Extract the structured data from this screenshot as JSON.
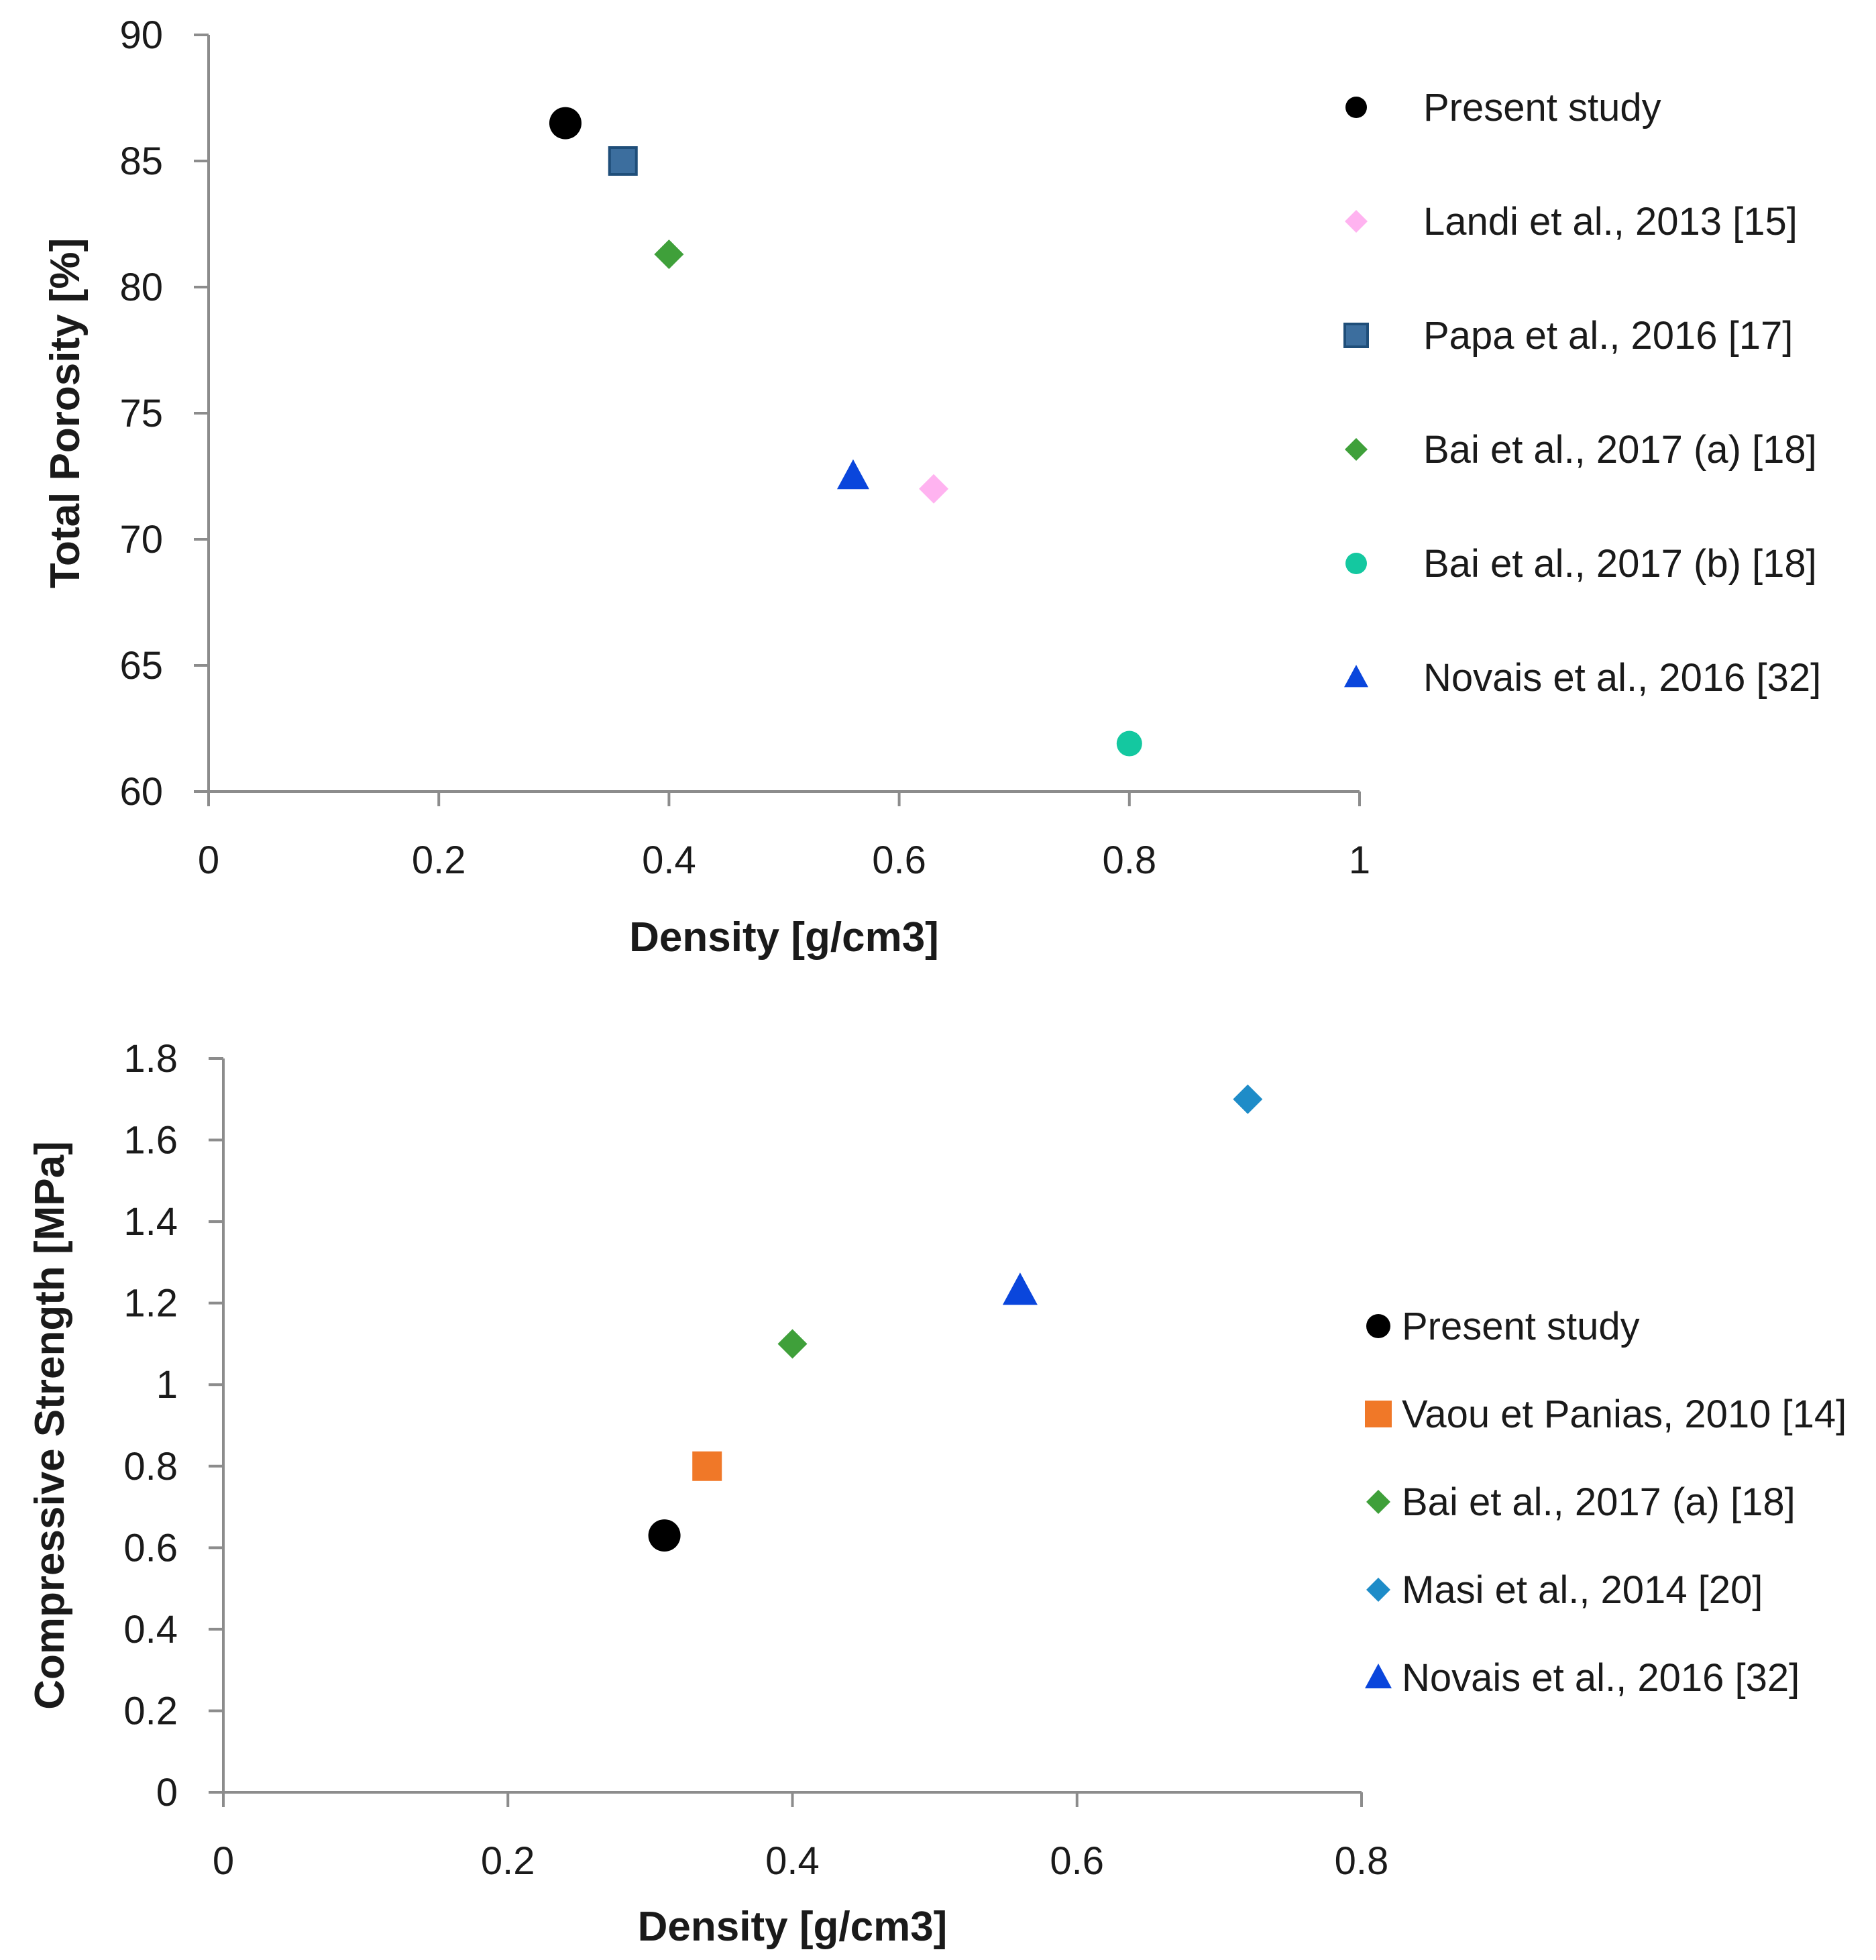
{
  "chart_data": [
    {
      "type": "scatter",
      "title": "",
      "xlabel": "Density [g/cm3]",
      "ylabel": "Total Porosity [%]",
      "xlim": [
        0,
        1
      ],
      "ylim": [
        60,
        90
      ],
      "xticks": [
        "0",
        "0.2",
        "0.4",
        "0.6",
        "0.8",
        "1"
      ],
      "yticks": [
        "60",
        "65",
        "70",
        "75",
        "80",
        "85",
        "90"
      ],
      "grid": false,
      "legend_position": "right",
      "series": [
        {
          "name": "Present study",
          "marker": "circle-large",
          "color": "#000000",
          "points": [
            {
              "x": 0.31,
              "y": 86.5
            }
          ]
        },
        {
          "name": "Landi et al., 2013 [15]",
          "marker": "diamond",
          "color": "#FFB3F0",
          "points": [
            {
              "x": 0.63,
              "y": 72
            }
          ]
        },
        {
          "name": "Papa et al., 2016 [17]",
          "marker": "square",
          "color": "#3C6E9E",
          "points": [
            {
              "x": 0.36,
              "y": 85
            }
          ]
        },
        {
          "name": "Bai et al., 2017 (a) [18]",
          "marker": "diamond",
          "color": "#3FA03A",
          "points": [
            {
              "x": 0.4,
              "y": 81.3
            }
          ]
        },
        {
          "name": "Bai et al., 2017 (b) [18]",
          "marker": "circle",
          "color": "#14C8A0",
          "points": [
            {
              "x": 0.8,
              "y": 61.9
            }
          ]
        },
        {
          "name": "Novais et al., 2016  [32]",
          "marker": "triangle",
          "color": "#0A46DC",
          "points": [
            {
              "x": 0.56,
              "y": 72.5
            }
          ]
        }
      ]
    },
    {
      "type": "scatter",
      "title": "",
      "xlabel": "Density [g/cm3]",
      "ylabel": "Compressive Strength [MPa]",
      "xlim": [
        0,
        0.8
      ],
      "ylim": [
        0,
        1.8
      ],
      "xticks": [
        "0",
        "0.2",
        "0.4",
        "0.6",
        "0.8"
      ],
      "yticks": [
        "0",
        "0.2",
        "0.4",
        "0.6",
        "0.8",
        "1",
        "1.2",
        "1.4",
        "1.6",
        "1.8"
      ],
      "grid": false,
      "legend_position": "right",
      "series": [
        {
          "name": "Present study",
          "marker": "circle-large",
          "color": "#000000",
          "points": [
            {
              "x": 0.31,
              "y": 0.63
            }
          ]
        },
        {
          "name": "Vaou et Panias, 2010 [14]",
          "marker": "square",
          "color": "#F07828",
          "points": [
            {
              "x": 0.34,
              "y": 0.8
            }
          ]
        },
        {
          "name": "Bai et al., 2017 (a) [18]",
          "marker": "diamond",
          "color": "#3FA03A",
          "points": [
            {
              "x": 0.4,
              "y": 1.1
            }
          ]
        },
        {
          "name": "Masi et al., 2014 [20]",
          "marker": "diamond",
          "color": "#1E8CC8",
          "points": [
            {
              "x": 0.72,
              "y": 1.7
            }
          ]
        },
        {
          "name": "Novais et al., 2016  [32]",
          "marker": "triangle",
          "color": "#0A46DC",
          "points": [
            {
              "x": 0.56,
              "y": 1.23
            }
          ]
        }
      ]
    }
  ]
}
